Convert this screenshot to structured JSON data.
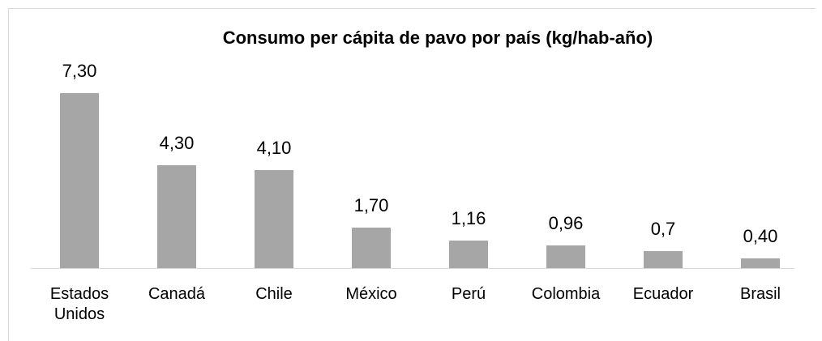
{
  "chart_data": {
    "type": "bar",
    "title": "Consumo per cápita de pavo por país (kg/hab-año)",
    "categories": [
      "Estados Unidos",
      "Canadá",
      "Chile",
      "México",
      "Perú",
      "Colombia",
      "Ecuador",
      "Brasil"
    ],
    "values": [
      7.3,
      4.3,
      4.1,
      1.7,
      1.16,
      0.96,
      0.7,
      0.4
    ],
    "value_labels": [
      "7,30",
      "4,30",
      "4,10",
      "1,70",
      "1,16",
      "0,96",
      "0,7",
      "0,40"
    ],
    "color": "#a6a6a6"
  }
}
